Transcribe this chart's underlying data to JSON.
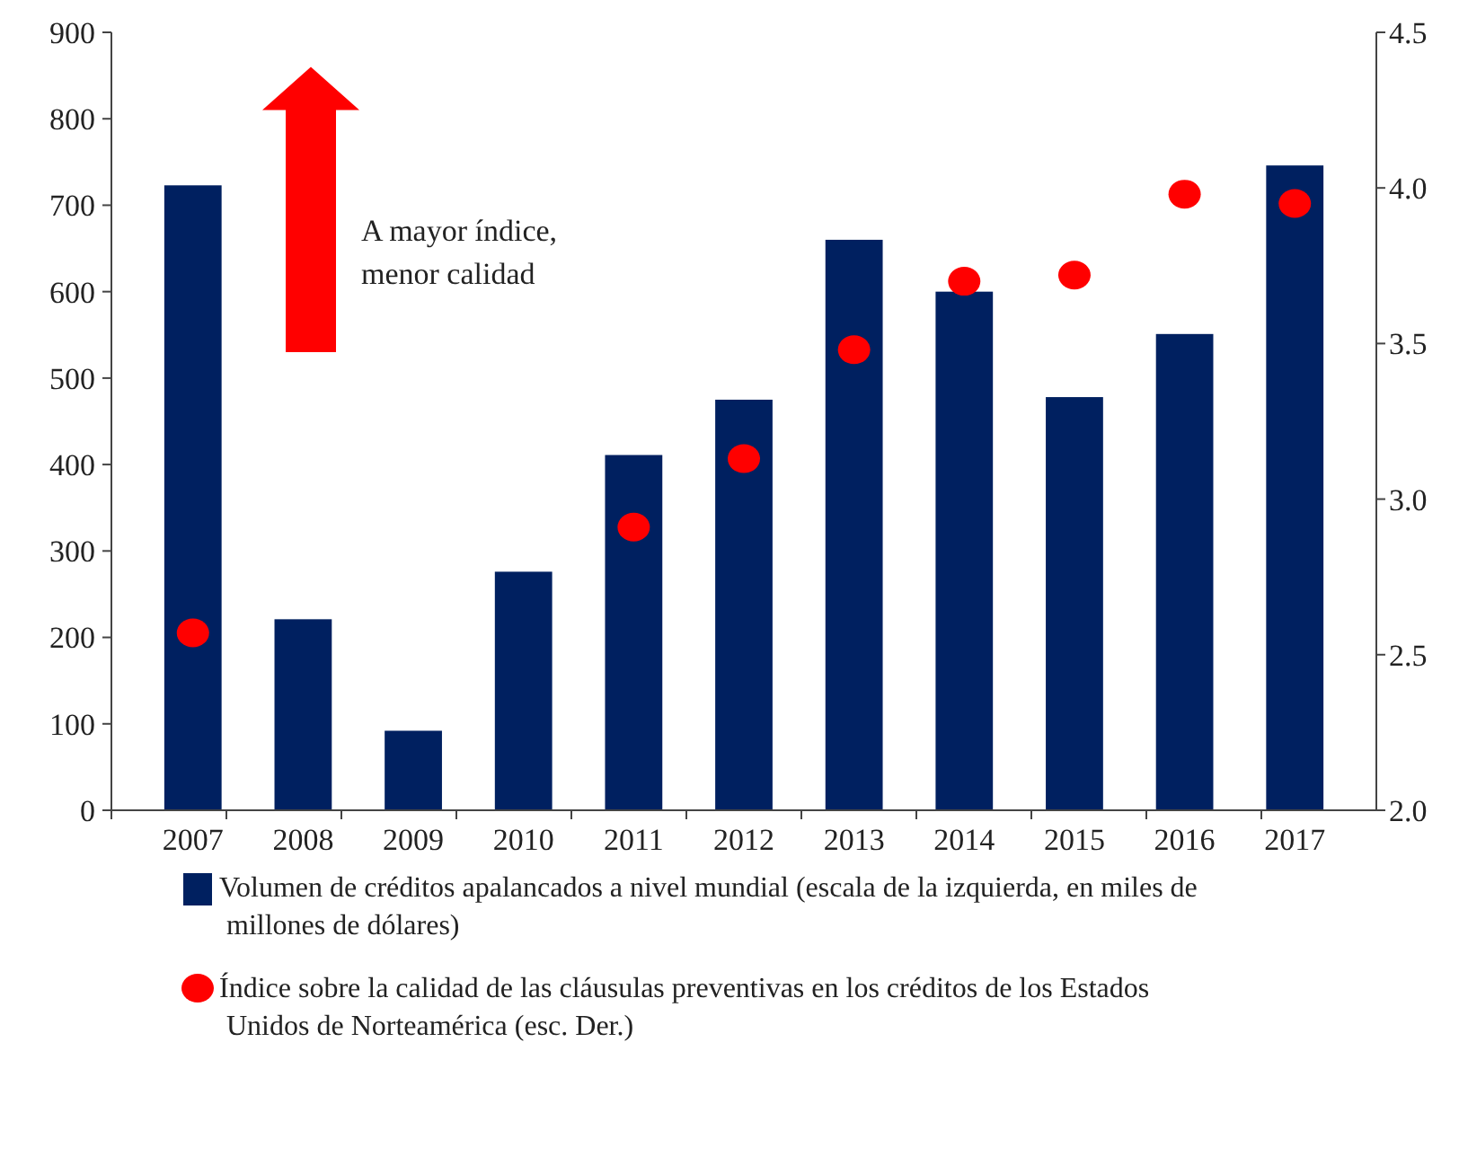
{
  "chart_data": {
    "type": "bar",
    "categories": [
      "2007",
      "2008",
      "2009",
      "2010",
      "2011",
      "2012",
      "2013",
      "2014",
      "2015",
      "2016",
      "2017"
    ],
    "series": [
      {
        "name": "Volumen de créditos apalancados a nivel mundial (escala de la izquierda, en miles de millones de dólares)",
        "color": "#002060",
        "values": [
          723,
          221,
          92,
          276,
          411,
          475,
          660,
          600,
          478,
          551,
          746
        ]
      },
      {
        "name": "Índice sobre la calidad de las cláusulas preventivas en los créditos de los Estados Unidos de Norteamérica (esc. Der.)",
        "type": "scatter",
        "axis": "y2",
        "color": "#ff0000",
        "marker": "circle",
        "values": [
          2.57,
          null,
          null,
          null,
          2.91,
          3.13,
          3.48,
          3.7,
          3.72,
          3.98,
          3.95
        ]
      }
    ],
    "ylim": [
      0,
      900
    ],
    "yticks": [
      0,
      100,
      200,
      300,
      400,
      500,
      600,
      700,
      800,
      900
    ],
    "y2lim": [
      2,
      4.5
    ],
    "y2ticks": [
      {
        "value": 2,
        "label": "2.0"
      },
      2.5,
      {
        "value": 3,
        "label": "3.0"
      },
      3.5,
      {
        "value": 4,
        "label": "4.0"
      },
      4.5
    ],
    "annotations": [
      "A mayor índice,\nmenor calidad"
    ],
    "legend": "bottom",
    "grid": false
  }
}
